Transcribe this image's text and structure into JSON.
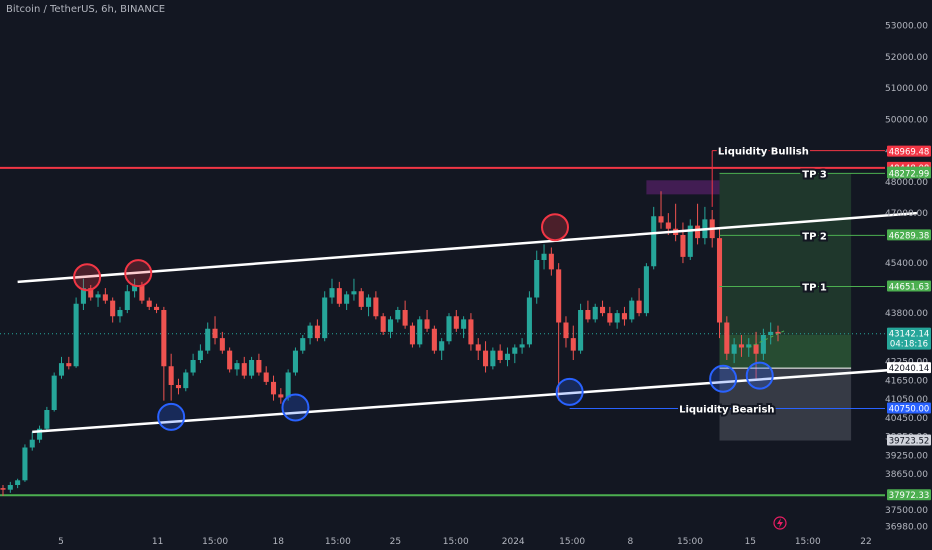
{
  "header": {
    "title": "Bitcoin / TetherUS, 6h, BINANCE"
  },
  "colors": {
    "background": "#131722",
    "up": "#26a69a",
    "down": "#ef5350",
    "axis_text": "#b2b5be",
    "resistance": "#f23645",
    "support": "#4caf50",
    "channel": "#ffffff",
    "circle_red": "#f23645",
    "circle_blue": "#2962ff"
  },
  "chart_data": {
    "type": "candlestick",
    "symbol": "Bitcoin / TetherUS",
    "interval": "6h",
    "exchange": "BINANCE",
    "y_range": [
      36700,
      53500
    ],
    "y_ticks": [
      53000,
      52000,
      51000,
      50000,
      49000,
      48000,
      47000,
      45400,
      43800,
      42250,
      41650,
      41050,
      40450,
      39850,
      39250,
      38650,
      37500,
      36980
    ],
    "x_range": [
      0,
      122
    ],
    "x_ticks": [
      {
        "x": 8.6,
        "label": "5"
      },
      {
        "x": 22.2,
        "label": "11"
      },
      {
        "x": 30.3,
        "label": "15:00"
      },
      {
        "x": 39.2,
        "label": "18"
      },
      {
        "x": 47.6,
        "label": "15:00"
      },
      {
        "x": 55.7,
        "label": "25"
      },
      {
        "x": 64.2,
        "label": "15:00"
      },
      {
        "x": 72.3,
        "label": "2024"
      },
      {
        "x": 80.6,
        "label": "15:00"
      },
      {
        "x": 88.8,
        "label": "8"
      },
      {
        "x": 97.2,
        "label": "15:00"
      },
      {
        "x": 105.7,
        "label": "15"
      },
      {
        "x": 113.8,
        "label": "15:00"
      },
      {
        "x": 122.0,
        "label": "22"
      }
    ],
    "price_tags": [
      {
        "value": 48969.48,
        "label": "48969.48",
        "color": "#f23645"
      },
      {
        "value": 48448.08,
        "label": "48448.08",
        "color": "#f23645"
      },
      {
        "value": 48296.26,
        "label": "48296.26",
        "color": "#4caf50"
      },
      {
        "value": 48272.99,
        "label": "48272.99",
        "color": "#4caf50"
      },
      {
        "value": 46289.38,
        "label": "46289.38",
        "color": "#4caf50"
      },
      {
        "value": 44651.63,
        "label": "44651.63",
        "color": "#4caf50"
      },
      {
        "value": 43142.14,
        "label": "43142.14",
        "sub": "04:18:16",
        "color": "#26a69a"
      },
      {
        "value": 42040.14,
        "label": "42040.14",
        "color": "#ffffff"
      },
      {
        "value": 40750.0,
        "label": "40750.00",
        "color": "#2962ff"
      },
      {
        "value": 39723.52,
        "label": "39723.52",
        "color": "#d1d4dc"
      },
      {
        "value": 37972.33,
        "label": "37972.33",
        "color": "#4caf50"
      }
    ],
    "horizontal_levels": [
      {
        "value": 48448,
        "color": "#f23645"
      },
      {
        "value": 37972,
        "color": "#4caf50"
      }
    ],
    "channel_upper": {
      "x1": 2,
      "y1": 44800,
      "x2": 125,
      "y2": 47000
    },
    "channel_lower": {
      "x1": 4,
      "y1": 40000,
      "x2": 125,
      "y2": 42040
    },
    "annotations": [
      {
        "text": "Liquidity Bullish",
        "x": 104,
        "y": 49000
      },
      {
        "text": "TP 3",
        "x": 111,
        "y": 48272
      },
      {
        "text": "TP 2",
        "x": 111,
        "y": 46289
      },
      {
        "text": "TP 1",
        "x": 111,
        "y": 44651
      },
      {
        "text": "Liquidity Bearish",
        "x": 99,
        "y": 40750
      }
    ],
    "circles": [
      {
        "x": 11.5,
        "y": 44950,
        "type": "red"
      },
      {
        "x": 18.5,
        "y": 45080,
        "type": "red"
      },
      {
        "x": 75.5,
        "y": 46550,
        "type": "red"
      },
      {
        "x": 23.0,
        "y": 40480,
        "type": "blue"
      },
      {
        "x": 40.0,
        "y": 40780,
        "type": "blue"
      },
      {
        "x": 77.5,
        "y": 41280,
        "type": "blue"
      },
      {
        "x": 98.5,
        "y": 41700,
        "type": "blue"
      },
      {
        "x": 103.5,
        "y": 41800,
        "type": "blue"
      }
    ],
    "zones": [
      {
        "kind": "supply",
        "x1": 88,
        "x2": 98,
        "y1": 47600,
        "y2": 48050,
        "color": "#9c27b0"
      },
      {
        "kind": "target",
        "x1": 98,
        "x2": 116,
        "y1": 43100,
        "y2": 48272,
        "color": "#4caf50"
      },
      {
        "kind": "entry",
        "x1": 98,
        "x2": 116,
        "y1": 42040,
        "y2": 43100,
        "color": "#4caf50"
      },
      {
        "kind": "stop",
        "x1": 98,
        "x2": 116,
        "y1": 39723,
        "y2": 42040,
        "color": "#787b86"
      }
    ],
    "candles": [
      [
        0,
        38200,
        38300,
        37950,
        38150
      ],
      [
        1,
        38150,
        38400,
        38050,
        38300
      ],
      [
        2,
        38300,
        38500,
        38200,
        38450
      ],
      [
        3,
        38450,
        39600,
        38400,
        39500
      ],
      [
        4,
        39500,
        40000,
        39400,
        39750
      ],
      [
        5,
        39750,
        40200,
        39650,
        40100
      ],
      [
        6,
        40100,
        40800,
        40000,
        40700
      ],
      [
        7,
        40700,
        41900,
        40650,
        41800
      ],
      [
        8,
        41800,
        42400,
        41700,
        42200
      ],
      [
        9,
        42200,
        42400,
        42000,
        42100
      ],
      [
        10,
        42100,
        44300,
        42050,
        44100
      ],
      [
        11,
        44100,
        44900,
        43900,
        44600
      ],
      [
        12,
        44600,
        44700,
        44200,
        44300
      ],
      [
        13,
        44300,
        44500,
        44000,
        44400
      ],
      [
        14,
        44400,
        44600,
        44100,
        44200
      ],
      [
        15,
        44200,
        44300,
        43500,
        43700
      ],
      [
        16,
        43700,
        44000,
        43500,
        43900
      ],
      [
        17,
        43900,
        44700,
        43800,
        44500
      ],
      [
        18,
        44500,
        44900,
        44300,
        44700
      ],
      [
        19,
        44700,
        44800,
        44100,
        44200
      ],
      [
        20,
        44200,
        44300,
        43900,
        44000
      ],
      [
        21,
        44000,
        44100,
        43800,
        43900
      ],
      [
        22,
        43900,
        44000,
        41000,
        42100
      ],
      [
        23,
        42100,
        42500,
        41000,
        41500
      ],
      [
        24,
        41500,
        41700,
        41200,
        41400
      ],
      [
        25,
        41400,
        42000,
        41300,
        41900
      ],
      [
        26,
        41900,
        42500,
        41800,
        42300
      ],
      [
        27,
        42300,
        42800,
        42200,
        42600
      ],
      [
        28,
        42600,
        43500,
        42500,
        43300
      ],
      [
        29,
        43300,
        43700,
        42800,
        43000
      ],
      [
        30,
        43000,
        43200,
        42500,
        42600
      ],
      [
        31,
        42600,
        42700,
        41900,
        42000
      ],
      [
        32,
        42000,
        42300,
        41800,
        42200
      ],
      [
        33,
        42200,
        42400,
        41700,
        41800
      ],
      [
        34,
        41800,
        42400,
        41700,
        42300
      ],
      [
        35,
        42300,
        42500,
        41800,
        41900
      ],
      [
        36,
        41900,
        42100,
        41500,
        41600
      ],
      [
        37,
        41600,
        41800,
        41000,
        41200
      ],
      [
        38,
        41200,
        41400,
        40900,
        41100
      ],
      [
        39,
        41100,
        42000,
        41000,
        41900
      ],
      [
        40,
        41900,
        42700,
        41800,
        42600
      ],
      [
        41,
        42600,
        43100,
        42500,
        43000
      ],
      [
        42,
        43000,
        43500,
        42800,
        43400
      ],
      [
        43,
        43400,
        43600,
        42900,
        43000
      ],
      [
        44,
        43000,
        44500,
        42900,
        44300
      ],
      [
        45,
        44300,
        44900,
        44100,
        44600
      ],
      [
        46,
        44600,
        44800,
        44000,
        44100
      ],
      [
        47,
        44100,
        44500,
        43900,
        44400
      ],
      [
        48,
        44400,
        44900,
        44200,
        44500
      ],
      [
        49,
        44500,
        44600,
        43900,
        44000
      ],
      [
        50,
        44000,
        44400,
        43700,
        44300
      ],
      [
        51,
        44300,
        44500,
        43600,
        43700
      ],
      [
        52,
        43700,
        43800,
        43100,
        43200
      ],
      [
        53,
        43200,
        43700,
        43000,
        43600
      ],
      [
        54,
        43600,
        44000,
        43500,
        43900
      ],
      [
        55,
        43900,
        44200,
        43300,
        43400
      ],
      [
        56,
        43400,
        43500,
        42700,
        42800
      ],
      [
        57,
        42800,
        43700,
        42700,
        43600
      ],
      [
        58,
        43600,
        43900,
        43200,
        43300
      ],
      [
        59,
        43300,
        43400,
        42500,
        42600
      ],
      [
        60,
        42600,
        43000,
        42300,
        42900
      ],
      [
        61,
        42900,
        43800,
        42800,
        43700
      ],
      [
        62,
        43700,
        43900,
        43200,
        43300
      ],
      [
        63,
        43300,
        43700,
        43000,
        43600
      ],
      [
        64,
        43600,
        43800,
        42600,
        42800
      ],
      [
        65,
        42800,
        43000,
        42300,
        42600
      ],
      [
        66,
        42600,
        42900,
        41900,
        42100
      ],
      [
        67,
        42100,
        42700,
        42000,
        42600
      ],
      [
        68,
        42600,
        42800,
        42200,
        42300
      ],
      [
        69,
        42300,
        42700,
        42100,
        42500
      ],
      [
        70,
        42500,
        42800,
        42200,
        42700
      ],
      [
        71,
        42700,
        43000,
        42500,
        42800
      ],
      [
        72,
        42800,
        44500,
        42700,
        44300
      ],
      [
        73,
        44300,
        45800,
        44100,
        45500
      ],
      [
        74,
        45500,
        46000,
        45200,
        45700
      ],
      [
        75,
        45700,
        45900,
        45000,
        45200
      ],
      [
        76,
        45200,
        45400,
        41000,
        43500
      ],
      [
        77,
        43500,
        43700,
        42700,
        43000
      ],
      [
        78,
        43000,
        43400,
        42300,
        42600
      ],
      [
        79,
        42600,
        44100,
        42500,
        43900
      ],
      [
        80,
        43900,
        44200,
        43500,
        43600
      ],
      [
        81,
        43600,
        44100,
        43500,
        44000
      ],
      [
        82,
        44000,
        44200,
        43700,
        43800
      ],
      [
        83,
        43800,
        44000,
        43400,
        43500
      ],
      [
        84,
        43500,
        43900,
        43300,
        43800
      ],
      [
        85,
        43800,
        44000,
        43400,
        43600
      ],
      [
        86,
        43600,
        44300,
        43500,
        44200
      ],
      [
        87,
        44200,
        44600,
        43700,
        43800
      ],
      [
        88,
        43800,
        45400,
        43700,
        45300
      ],
      [
        89,
        45300,
        47200,
        45200,
        46900
      ],
      [
        90,
        46900,
        47700,
        46500,
        46700
      ],
      [
        91,
        46700,
        47000,
        46300,
        46500
      ],
      [
        92,
        46500,
        47300,
        46100,
        46300
      ],
      [
        93,
        46300,
        46700,
        45400,
        45600
      ],
      [
        94,
        45600,
        46800,
        45500,
        46600
      ],
      [
        95,
        46600,
        47300,
        46000,
        46200
      ],
      [
        96,
        46200,
        47200,
        46000,
        46800
      ],
      [
        97,
        46800,
        47100,
        45900,
        46200
      ],
      [
        98,
        46200,
        46500,
        43000,
        43500
      ],
      [
        99,
        43500,
        43700,
        42300,
        42500
      ],
      [
        100,
        42500,
        43000,
        42200,
        42800
      ],
      [
        101,
        42800,
        43100,
        42400,
        42700
      ],
      [
        102,
        42700,
        43000,
        42400,
        42800
      ],
      [
        103,
        42800,
        43200,
        41700,
        42500
      ],
      [
        104,
        42500,
        43300,
        42300,
        43100
      ],
      [
        105,
        43100,
        43500,
        42800,
        43200
      ],
      [
        106,
        43200,
        43400,
        42900,
        43142
      ]
    ]
  }
}
